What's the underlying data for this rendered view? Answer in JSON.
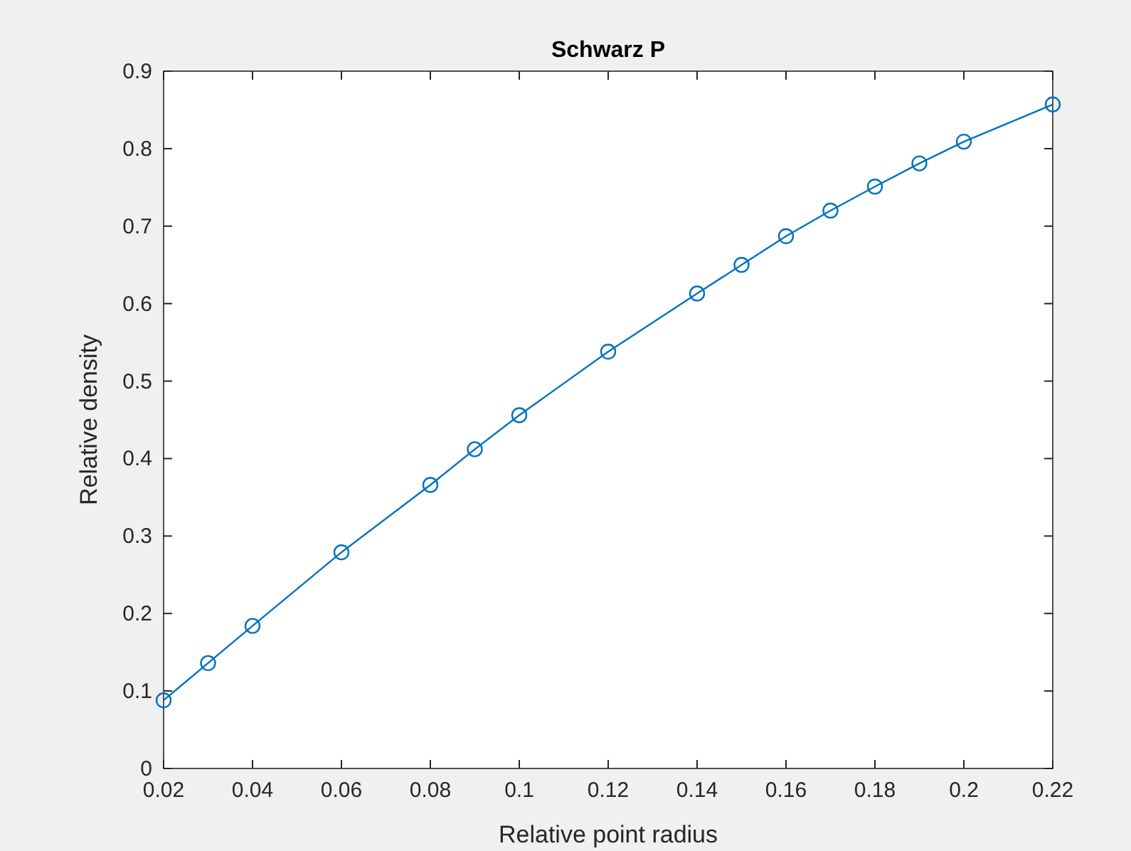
{
  "chart_data": {
    "type": "line",
    "title": "Schwarz P",
    "xlabel": "Relative point radius",
    "ylabel": "Relative density",
    "x": [
      0.02,
      0.03,
      0.04,
      0.06,
      0.08,
      0.09,
      0.1,
      0.12,
      0.14,
      0.15,
      0.16,
      0.17,
      0.18,
      0.19,
      0.2,
      0.22
    ],
    "series": [
      {
        "color": "#0072bd",
        "values": [
          0.088,
          0.136,
          0.184,
          0.279,
          0.366,
          0.412,
          0.456,
          0.538,
          0.613,
          0.65,
          0.687,
          0.72,
          0.751,
          0.781,
          0.809,
          0.857
        ]
      }
    ],
    "xlim": [
      0.02,
      0.22
    ],
    "xticks": [
      0.02,
      0.04,
      0.06,
      0.08,
      0.1,
      0.12,
      0.14,
      0.16,
      0.18,
      0.2,
      0.22
    ],
    "ylim": [
      0,
      0.9
    ],
    "yticks": [
      0,
      0.1,
      0.2,
      0.3,
      0.4,
      0.5,
      0.6,
      0.7,
      0.8,
      0.9
    ],
    "marker": "circle",
    "line_style": "solid",
    "grid": false
  }
}
